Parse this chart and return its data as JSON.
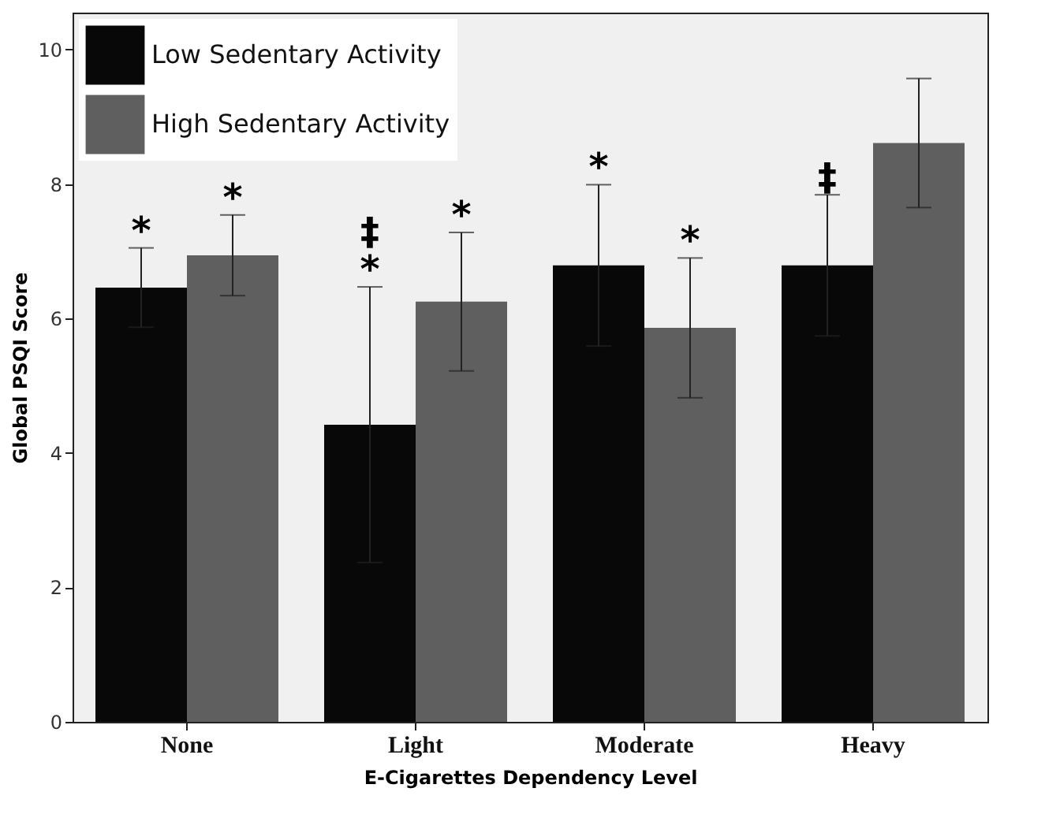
{
  "chart_data": {
    "type": "bar",
    "xlabel": "E-Cigarettes Dependency Level",
    "ylabel": "Global PSQI Score",
    "categories": [
      "None",
      "Light",
      "Moderate",
      "Heavy"
    ],
    "series": [
      {
        "name": "Low Sedentary Activity",
        "color": "#080808",
        "values": [
          6.46,
          4.42,
          6.79,
          6.79
        ],
        "errors": [
          0.59,
          2.05,
          1.2,
          1.05
        ],
        "value_labels": [
          "*",
          "‡\n*",
          "*",
          "‡"
        ]
      },
      {
        "name": "High Sedentary Activity",
        "color": "#5f5f5f",
        "values": [
          6.94,
          6.25,
          5.86,
          8.61
        ],
        "errors": [
          0.6,
          1.03,
          1.04,
          0.96
        ],
        "value_labels": [
          "*",
          "*",
          "*",
          null
        ]
      }
    ],
    "ylim": [
      0,
      10.55
    ],
    "yticks": [
      0,
      2,
      4,
      6,
      8,
      10
    ],
    "grid": false,
    "legend": "top left"
  }
}
